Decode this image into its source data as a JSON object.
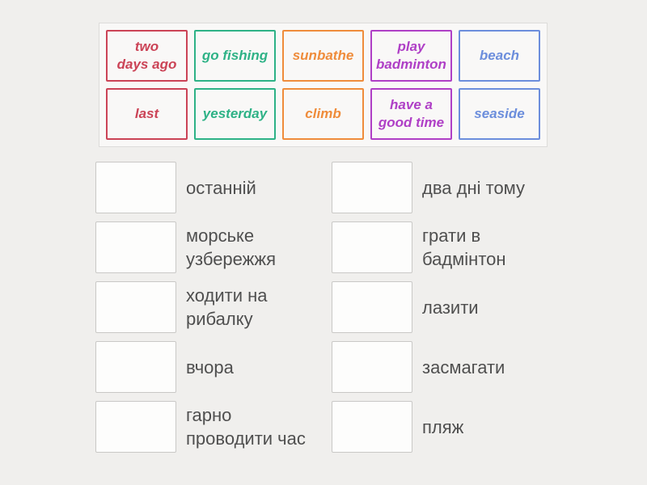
{
  "page": {
    "background": "#f0efed"
  },
  "word_bank": {
    "cards": [
      {
        "label": "two\ndays ago",
        "color": "#cb4356"
      },
      {
        "label": "go fishing",
        "color": "#2eb286"
      },
      {
        "label": "sunbathe",
        "color": "#ef8c3b"
      },
      {
        "label": "play\nbadminton",
        "color": "#af3fc6"
      },
      {
        "label": "beach",
        "color": "#6c8edc"
      },
      {
        "label": "last",
        "color": "#cb4356"
      },
      {
        "label": "yesterday",
        "color": "#2eb286"
      },
      {
        "label": "climb",
        "color": "#ef8c3b"
      },
      {
        "label": "have a\ngood time",
        "color": "#af3fc6"
      },
      {
        "label": "seaside",
        "color": "#6c8edc"
      }
    ]
  },
  "match_list": {
    "left": [
      {
        "label": "останній"
      },
      {
        "label": "морське\nузбережжя"
      },
      {
        "label": "ходити на\nрибалку"
      },
      {
        "label": "вчора"
      },
      {
        "label": "гарно\nпроводити час"
      }
    ],
    "right": [
      {
        "label": "два дні тому"
      },
      {
        "label": "грати в\nбадмінтон"
      },
      {
        "label": "лазити"
      },
      {
        "label": "засмагати"
      },
      {
        "label": "пляж"
      }
    ]
  }
}
